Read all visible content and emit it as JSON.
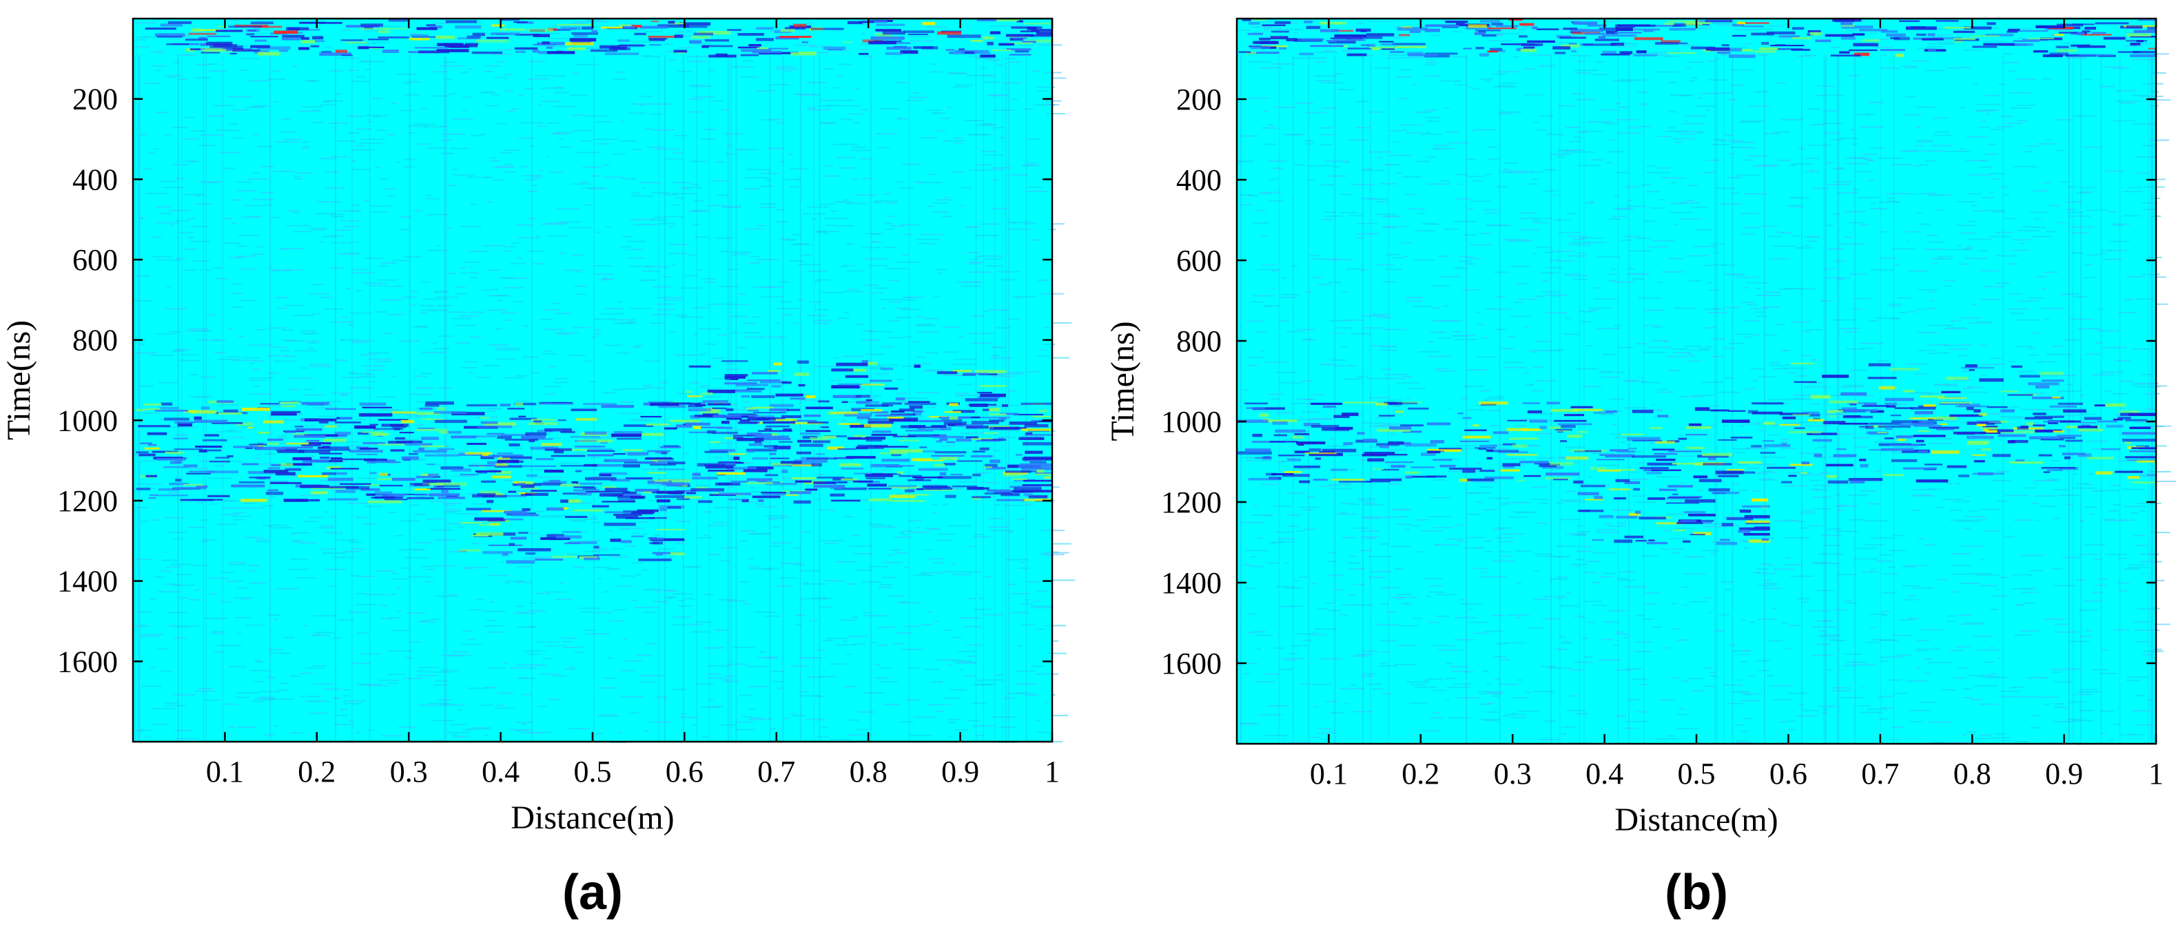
{
  "colors": {
    "background": "#00e5e5",
    "base": "#00ffff",
    "dark_band": "#1a22d6",
    "mid": "#2e7bff",
    "accent_green": "#7cff6b",
    "accent_yellow": "#e8f000",
    "accent_red": "#ff2020",
    "axis": "#000000"
  },
  "chart_data": [
    {
      "type": "heatmap",
      "panel_label": "(a)",
      "xlabel": "Distance(m)",
      "ylabel": "Time(ns)",
      "xlim": [
        0,
        1
      ],
      "ylim": [
        1800,
        0
      ],
      "xticks": [
        0.1,
        0.2,
        0.3,
        0.4,
        0.5,
        0.6,
        0.7,
        0.8,
        0.9,
        1
      ],
      "xtick_labels": [
        "0.1",
        "0.2",
        "0.3",
        "0.4",
        "0.5",
        "0.6",
        "0.7",
        "0.8",
        "0.9",
        "1"
      ],
      "yticks": [
        200,
        400,
        600,
        800,
        1000,
        1200,
        1400,
        1600
      ],
      "ytick_labels": [
        "200",
        "400",
        "600",
        "800",
        "1000",
        "1200",
        "1400",
        "1600"
      ],
      "colormap": "jet",
      "features": [
        {
          "kind": "direct-wave band",
          "t_range_ns": [
            0,
            90
          ],
          "x_range_m": [
            0,
            1
          ],
          "intensity": "strong"
        },
        {
          "kind": "reflection band",
          "t_range_ns": [
            950,
            1200
          ],
          "x_range_m": [
            0,
            1
          ],
          "intensity": "strong"
        },
        {
          "kind": "scattering zone",
          "t_range_ns": [
            1150,
            1350
          ],
          "x_range_m": [
            0.35,
            0.6
          ],
          "intensity": "medium"
        },
        {
          "kind": "scattering zone",
          "t_range_ns": [
            850,
            1050
          ],
          "x_range_m": [
            0.6,
            0.95
          ],
          "intensity": "medium"
        }
      ]
    },
    {
      "type": "heatmap",
      "panel_label": "(b)",
      "xlabel": "Distance(m)",
      "ylabel": "Time(ns)",
      "xlim": [
        0,
        1
      ],
      "ylim": [
        1800,
        0
      ],
      "xticks": [
        0.1,
        0.2,
        0.3,
        0.4,
        0.5,
        0.6,
        0.7,
        0.8,
        0.9,
        1
      ],
      "xtick_labels": [
        "0.1",
        "0.2",
        "0.3",
        "0.4",
        "0.5",
        "0.6",
        "0.7",
        "0.8",
        "0.9",
        "1"
      ],
      "yticks": [
        200,
        400,
        600,
        800,
        1000,
        1200,
        1400,
        1600
      ],
      "ytick_labels": [
        "200",
        "400",
        "600",
        "800",
        "1000",
        "1200",
        "1400",
        "1600"
      ],
      "colormap": "jet",
      "features": [
        {
          "kind": "direct-wave band",
          "t_range_ns": [
            0,
            90
          ],
          "x_range_m": [
            0,
            1
          ],
          "intensity": "strong"
        },
        {
          "kind": "reflection band",
          "t_range_ns": [
            950,
            1150
          ],
          "x_range_m": [
            0,
            1
          ],
          "intensity": "medium"
        },
        {
          "kind": "scattering zone",
          "t_range_ns": [
            1150,
            1300
          ],
          "x_range_m": [
            0.37,
            0.58
          ],
          "intensity": "medium"
        },
        {
          "kind": "scattering zone",
          "t_range_ns": [
            850,
            1050
          ],
          "x_range_m": [
            0.6,
            0.9
          ],
          "intensity": "weak"
        }
      ]
    }
  ]
}
